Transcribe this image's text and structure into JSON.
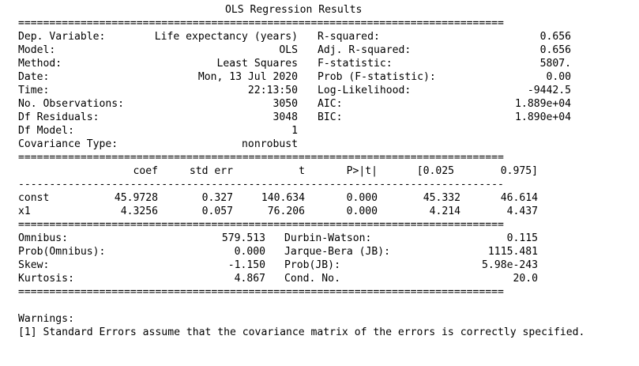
{
  "title": "OLS Regression Results",
  "sep_double": "==============================================================================",
  "sep_single": "------------------------------------------------------------------------------",
  "top": {
    "rows": [
      {
        "l1": "Dep. Variable:",
        "v1": "Life expectancy (years)",
        "l2": "R-squared:",
        "v2": "0.656"
      },
      {
        "l1": "Model:",
        "v1": "OLS",
        "l2": "Adj. R-squared:",
        "v2": "0.656"
      },
      {
        "l1": "Method:",
        "v1": "Least Squares",
        "l2": "F-statistic:",
        "v2": "5807."
      },
      {
        "l1": "Date:",
        "v1": "Mon, 13 Jul 2020",
        "l2": "Prob (F-statistic):",
        "v2": "0.00"
      },
      {
        "l1": "Time:",
        "v1": "22:13:50",
        "l2": "Log-Likelihood:",
        "v2": "-9442.5"
      },
      {
        "l1": "No. Observations:",
        "v1": "3050",
        "l2": "AIC:",
        "v2": "1.889e+04"
      },
      {
        "l1": "Df Residuals:",
        "v1": "3048",
        "l2": "BIC:",
        "v2": "1.890e+04"
      },
      {
        "l1": "Df Model:",
        "v1": "1",
        "l2": "",
        "v2": ""
      },
      {
        "l1": "Covariance Type:",
        "v1": "nonrobust",
        "l2": "",
        "v2": ""
      }
    ]
  },
  "coef": {
    "headers": [
      "coef",
      "std err",
      "t",
      "P>|t|",
      "[0.025",
      "0.975]"
    ],
    "rows": [
      {
        "name": "const",
        "vals": [
          "45.9728",
          "0.327",
          "140.634",
          "0.000",
          "45.332",
          "46.614"
        ]
      },
      {
        "name": "x1",
        "vals": [
          "4.3256",
          "0.057",
          "76.206",
          "0.000",
          "4.214",
          "4.437"
        ]
      }
    ]
  },
  "diag": {
    "rows": [
      {
        "l1": "Omnibus:",
        "v1": "579.513",
        "l2": "Durbin-Watson:",
        "v2": "0.115"
      },
      {
        "l1": "Prob(Omnibus):",
        "v1": "0.000",
        "l2": "Jarque-Bera (JB):",
        "v2": "1115.481"
      },
      {
        "l1": "Skew:",
        "v1": "-1.150",
        "l2": "Prob(JB):",
        "v2": "5.98e-243"
      },
      {
        "l1": "Kurtosis:",
        "v1": "4.867",
        "l2": "Cond. No.",
        "v2": "20.0"
      }
    ]
  },
  "warnings": {
    "heading": "Warnings:",
    "lines": [
      "[1] Standard Errors assume that the covariance matrix of the errors is correctly specified."
    ]
  }
}
